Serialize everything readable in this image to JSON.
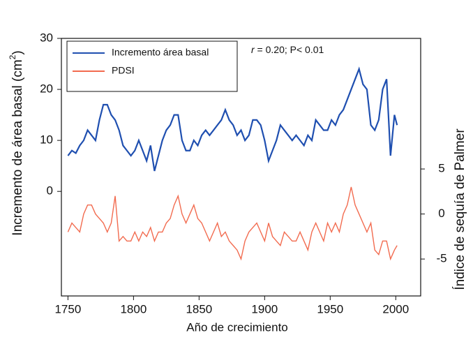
{
  "chart_data": {
    "type": "line",
    "x_label": "Año de crecimiento",
    "y_label": [
      "Incremento de área basal (cm",
      "2",
      ")"
    ],
    "y2_label": "Índice de sequía de Palmer",
    "annotation_var": "r",
    "annotation": " = 0.20; P< 0.01",
    "x": [
      1750,
      1753,
      1756,
      1759,
      1762,
      1765,
      1768,
      1771,
      1774,
      1777,
      1780,
      1783,
      1786,
      1789,
      1792,
      1795,
      1798,
      1801,
      1804,
      1807,
      1810,
      1813,
      1816,
      1819,
      1822,
      1825,
      1828,
      1831,
      1834,
      1837,
      1840,
      1843,
      1846,
      1849,
      1852,
      1855,
      1858,
      1861,
      1864,
      1867,
      1870,
      1873,
      1876,
      1879,
      1882,
      1885,
      1888,
      1891,
      1894,
      1897,
      1900,
      1903,
      1906,
      1909,
      1912,
      1915,
      1918,
      1921,
      1924,
      1927,
      1930,
      1933,
      1936,
      1939,
      1942,
      1945,
      1948,
      1951,
      1954,
      1957,
      1960,
      1963,
      1966,
      1969,
      1972,
      1975,
      1978,
      1981,
      1984,
      1987,
      1990,
      1993,
      1996,
      1999,
      2001
    ],
    "series": [
      {
        "name": "Incremento área basal",
        "color": "#1f4fb0",
        "values": [
          7,
          8,
          7.5,
          9,
          10,
          12,
          11,
          10,
          14,
          17,
          17,
          15,
          14,
          12,
          9,
          8,
          7,
          8,
          10,
          8,
          6,
          9,
          4,
          7,
          10,
          12,
          13,
          15,
          15,
          10,
          8,
          8,
          10,
          9,
          11,
          12,
          11,
          12,
          13,
          14,
          16,
          14,
          13,
          11,
          12,
          10,
          11,
          14,
          14,
          13,
          10,
          6,
          8,
          10,
          13,
          12,
          11,
          10,
          11,
          10,
          9,
          11,
          10,
          14,
          13,
          12,
          12,
          14,
          13,
          15,
          16,
          18,
          20,
          22,
          24,
          21,
          20,
          13,
          12,
          14,
          20,
          22,
          7,
          15,
          13
        ]
      },
      {
        "name": "PDSI",
        "color": "#f26b4f",
        "axis": "y2",
        "values": [
          -2,
          -1,
          -1.5,
          -2,
          0,
          1,
          1,
          0,
          -0.5,
          -1,
          -2,
          -1,
          2,
          -3,
          -2.5,
          -3,
          -3,
          -2,
          -3,
          -2,
          -2.5,
          -1.5,
          -3,
          -2,
          -2,
          -1,
          -0.5,
          1,
          2,
          0,
          -1,
          0,
          1,
          -0.5,
          -1,
          -2,
          -3,
          -2,
          -1,
          -2.5,
          -2,
          -3,
          -3.5,
          -4,
          -5,
          -3,
          -2,
          -1.5,
          -1,
          -2,
          -3,
          -1,
          -2.5,
          -3,
          -3.5,
          -2,
          -2.5,
          -3,
          -3,
          -2,
          -3,
          -4,
          -2,
          -1,
          -2,
          -3,
          -1,
          -2,
          -1,
          -2,
          0,
          1,
          3,
          1,
          0,
          -1,
          -2,
          -1,
          -4,
          -4.5,
          -3,
          -3,
          -5,
          -4,
          -3.5
        ]
      }
    ],
    "xlim": [
      1745,
      2019
    ],
    "xticks": [
      1750,
      1800,
      1850,
      1900,
      1950,
      2000
    ],
    "ylim": [
      -20.5,
      30
    ],
    "yticks": [
      0,
      10,
      20,
      30
    ],
    "y2lim": [
      -9.1,
      19.5
    ],
    "y2ticks": [
      -5,
      0,
      5
    ]
  }
}
